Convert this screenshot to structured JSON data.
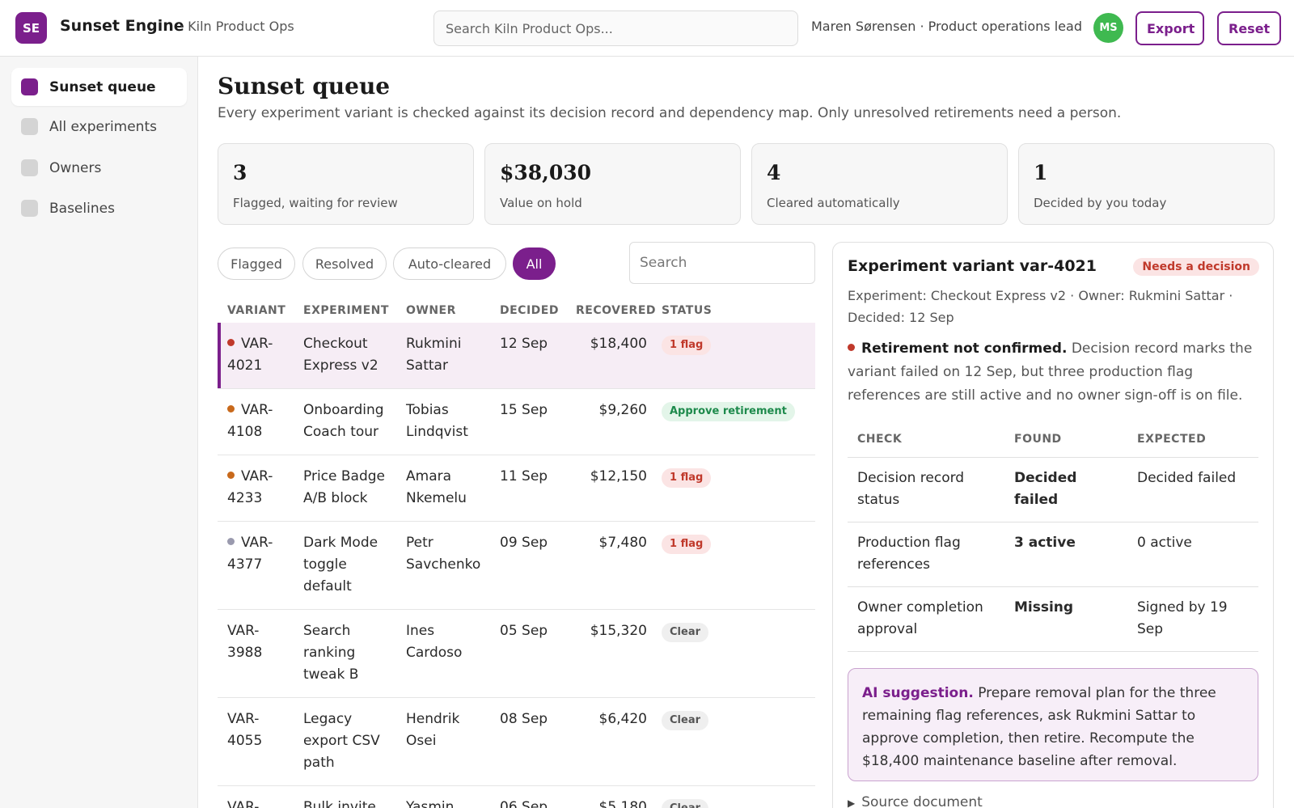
{
  "app": {
    "initials": "SE",
    "name": "Sunset Engine",
    "org": "· Kiln Product Ops",
    "search_placeholder": "Search Kiln Product Ops...",
    "user": "Maren Sørensen · Product operations lead",
    "user_initials": "MS",
    "export_label": "Export",
    "reset_label": "Reset"
  },
  "sidebar": {
    "items": [
      {
        "label": "Sunset queue",
        "active": true
      },
      {
        "label": "All experiments",
        "active": false
      },
      {
        "label": "Owners",
        "active": false
      },
      {
        "label": "Baselines",
        "active": false
      }
    ]
  },
  "page": {
    "title": "Sunset queue",
    "subtitle": "Every experiment variant is checked against its decision record and dependency map. Only unresolved retirements need a person."
  },
  "stats": [
    {
      "value": "3",
      "label": "Flagged, waiting for review"
    },
    {
      "value": "$38,030",
      "label": "Value on hold"
    },
    {
      "value": "4",
      "label": "Cleared automatically"
    },
    {
      "value": "1",
      "label": "Decided by you today"
    }
  ],
  "filters": {
    "flagged": "Flagged",
    "resolved": "Resolved",
    "auto_cleared": "Auto-cleared",
    "all": "All",
    "active": "All",
    "search_placeholder": "Search"
  },
  "table": {
    "headers": {
      "variant": "VARIANT",
      "experiment": "EXPERIMENT",
      "owner": "OWNER",
      "decided": "DECIDED",
      "recovered": "RECOVERED",
      "status": "STATUS"
    },
    "rows": [
      {
        "variant": "VAR-4021",
        "experiment": "Checkout Express v2",
        "owner": "Rukmini Sattar",
        "decided": "12 Sep",
        "recovered": "$18,400",
        "status": "1 flag",
        "status_type": "flag",
        "dot_color": "#c0392b",
        "selected": true
      },
      {
        "variant": "VAR-4108",
        "experiment": "Onboarding Coach tour",
        "owner": "Tobias Lindqvist",
        "decided": "15 Sep",
        "recovered": "$9,260",
        "status": "Approve retirement",
        "status_type": "approve",
        "dot_color": "#c8691b",
        "selected": false
      },
      {
        "variant": "VAR-4233",
        "experiment": "Price Badge A/B block",
        "owner": "Amara Nkemelu",
        "decided": "11 Sep",
        "recovered": "$12,150",
        "status": "1 flag",
        "status_type": "flag",
        "dot_color": "#c8691b",
        "selected": false
      },
      {
        "variant": "VAR-4377",
        "experiment": "Dark Mode toggle default",
        "owner": "Petr Savchenko",
        "decided": "09 Sep",
        "recovered": "$7,480",
        "status": "1 flag",
        "status_type": "flag",
        "dot_color": "#9a9aae",
        "selected": false
      },
      {
        "variant": "VAR-3988",
        "experiment": "Search ranking tweak B",
        "owner": "Ines Cardoso",
        "decided": "05 Sep",
        "recovered": "$15,320",
        "status": "Clear",
        "status_type": "clear",
        "dot_color": "",
        "selected": false
      },
      {
        "variant": "VAR-4055",
        "experiment": "Legacy export CSV path",
        "owner": "Hendrik Osei",
        "decided": "08 Sep",
        "recovered": "$6,420",
        "status": "Clear",
        "status_type": "clear",
        "dot_color": "",
        "selected": false
      },
      {
        "variant": "VAR-",
        "experiment": "Bulk invite",
        "owner": "Yasmin",
        "decided": "06 Sep",
        "recovered": "$5,180",
        "status": "Clear",
        "status_type": "clear",
        "dot_color": "",
        "selected": false
      }
    ]
  },
  "detail": {
    "title": "Experiment variant var-4021",
    "badge": "Needs a decision",
    "meta": "Experiment: Checkout Express v2 · Owner: Rukmini Sattar · Decided: 12 Sep",
    "message_title": "Retirement not confirmed.",
    "message_body": "Decision record marks the variant failed on 12 Sep, but three production flag references are still active and no owner sign-off is on file.",
    "check_headers": {
      "check": "CHECK",
      "found": "FOUND",
      "expected": "EXPECTED"
    },
    "checks": [
      {
        "check": "Decision record status",
        "found": "Decided failed",
        "found_ok": true,
        "expected": "Decided failed"
      },
      {
        "check": "Production flag references",
        "found": "3 active",
        "found_ok": false,
        "expected": "0 active"
      },
      {
        "check": "Owner completion approval",
        "found": "Missing",
        "found_ok": false,
        "expected": "Signed by 19 Sep"
      }
    ],
    "ai_label": "AI suggestion.",
    "ai_text": "Prepare removal plan for the three remaining flag references, ask Rukmini Sattar to approve completion, then retire. Recompute the $18,400 maintenance baseline after removal.",
    "source_label": "Source document"
  },
  "colors": {
    "accent": "#7b1f8c",
    "danger": "#c0392b",
    "success": "#1e8a4c",
    "avatar": "#3fb950"
  }
}
